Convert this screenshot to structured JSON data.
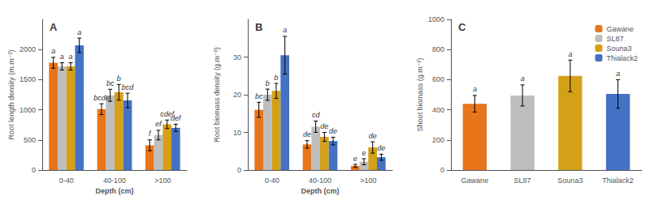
{
  "chart_data": [
    {
      "type": "bar",
      "title": "A",
      "xlabel": "Depth (cm)",
      "ylabel": "Root length density (m.m⁻³)",
      "categories": [
        "0-40",
        "40-100",
        ">100"
      ],
      "series": [
        {
          "name": "Gawane",
          "color": "#E8751A",
          "values": [
            1780,
            1010,
            410
          ],
          "errors": [
            90,
            90,
            90
          ],
          "annotations": [
            "a",
            "bcde",
            "f"
          ]
        },
        {
          "name": "SL87",
          "color": "#BEBEBE",
          "values": [
            1720,
            1240,
            580
          ],
          "errors": [
            60,
            100,
            80
          ],
          "annotations": [
            "a",
            "bc",
            "ef"
          ]
        },
        {
          "name": "Souna3",
          "color": "#D4A017",
          "values": [
            1720,
            1290,
            760
          ],
          "errors": [
            60,
            130,
            70
          ],
          "annotations": [
            "a",
            "b",
            "cdef"
          ]
        },
        {
          "name": "Thialack2",
          "color": "#4472C4",
          "values": [
            2070,
            1155,
            700
          ],
          "errors": [
            120,
            120,
            60
          ],
          "annotations": [
            "a",
            "bcd",
            "def"
          ]
        }
      ],
      "ylim": [
        0,
        2500
      ],
      "yticks": [
        0,
        500,
        1000,
        1500,
        2000
      ],
      "grid": false
    },
    {
      "type": "bar",
      "title": "B",
      "xlabel": "Depth (cm)",
      "ylabel": "Root biomass density (g.m⁻³)",
      "categories": [
        "0-40",
        "40-100",
        ">100"
      ],
      "series": [
        {
          "name": "Gawane",
          "color": "#E8751A",
          "values": [
            16,
            6.8,
            1.1
          ],
          "errors": [
            2.0,
            1.0,
            0.4
          ],
          "annotations": [
            "bc",
            "de",
            "e"
          ]
        },
        {
          "name": "SL87",
          "color": "#BEBEBE",
          "values": [
            20,
            11.5,
            2.2
          ],
          "errors": [
            1.5,
            1.5,
            0.8
          ],
          "annotations": [
            "b",
            "cd",
            "e"
          ]
        },
        {
          "name": "Souna3",
          "color": "#D4A017",
          "values": [
            21,
            8.8,
            6.0
          ],
          "errors": [
            2.0,
            1.2,
            1.5
          ],
          "annotations": [
            "b",
            "de",
            "de"
          ]
        },
        {
          "name": "Thialack2",
          "color": "#4472C4",
          "values": [
            30.5,
            7.7,
            3.4
          ],
          "errors": [
            5.0,
            1.0,
            0.8
          ],
          "annotations": [
            "a",
            "de",
            "de"
          ]
        }
      ],
      "ylim": [
        0,
        40
      ],
      "yticks": [
        0,
        10,
        20,
        30
      ],
      "grid": false
    },
    {
      "type": "bar",
      "title": "C",
      "ylabel": "Shoot biomass (g.m⁻²)",
      "categories": [
        "Gawane",
        "SL87",
        "Souna3",
        "Thialack2"
      ],
      "values": [
        440,
        495,
        625,
        505
      ],
      "colors": [
        "#E8751A",
        "#BEBEBE",
        "#D4A017",
        "#4472C4"
      ],
      "errors": [
        55,
        70,
        105,
        95
      ],
      "annotations": [
        "a",
        "a",
        "a",
        "a"
      ],
      "ylim": [
        0,
        1000
      ],
      "yticks": [
        0,
        200,
        400,
        600,
        800,
        1000
      ],
      "grid": false,
      "legend": "upper right"
    }
  ]
}
